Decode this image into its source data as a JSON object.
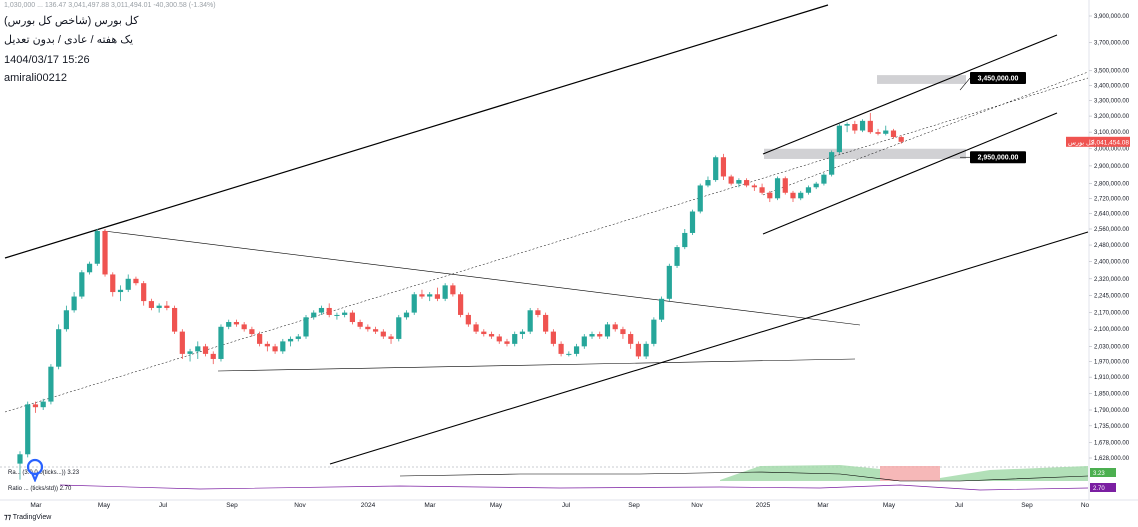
{
  "header": {
    "ohlc_line": "1,030,000 ... 136.47 3,041,497.88 3,011,494.01 -40,300.58 (-1.34%)",
    "title": "کل بورس (شاخص کل بورس)",
    "subtitle": "یک هفته / عادی / بدون تعدیل",
    "datetime": "1404/03/17 15:26",
    "author": "amirali00212"
  },
  "branding": {
    "logo_text": "TradingView",
    "icon": "tradingview-icon"
  },
  "colors": {
    "up": "#26a69a",
    "down": "#ef5350",
    "zone": "#c9c9cc",
    "tag_bg": "#000000",
    "last_bg": "#ef5350",
    "ind_green": "#9fd8a6",
    "ind_red": "#f4a6a6",
    "ind_purple": "#7b1fa2"
  },
  "chart_data": {
    "type": "candlestick",
    "title": "کل بورس (شاخص کل بورس)",
    "timeframe": "1W",
    "y_scale": "log",
    "ylim": [
      1580000,
      3900000
    ],
    "price_ticks": [
      {
        "v": 3900000,
        "label": "3,900,000.00"
      },
      {
        "v": 3700000,
        "label": "3,700,000.00"
      },
      {
        "v": 3500000,
        "label": "3,500,000.00"
      },
      {
        "v": 3400000,
        "label": "3,400,000.00"
      },
      {
        "v": 3300000,
        "label": "3,300,000.00"
      },
      {
        "v": 3200000,
        "label": "3,200,000.00"
      },
      {
        "v": 3100000,
        "label": "3,100,000.00"
      },
      {
        "v": 3000000,
        "label": "3,000,000.00"
      },
      {
        "v": 2900000,
        "label": "2,900,000.00"
      },
      {
        "v": 2800000,
        "label": "2,800,000.00"
      },
      {
        "v": 2720000,
        "label": "2,720,000.00"
      },
      {
        "v": 2640000,
        "label": "2,640,000.00"
      },
      {
        "v": 2560000,
        "label": "2,560,000.00"
      },
      {
        "v": 2480000,
        "label": "2,480,000.00"
      },
      {
        "v": 2400000,
        "label": "2,400,000.00"
      },
      {
        "v": 2320000,
        "label": "2,320,000.00"
      },
      {
        "v": 2245000,
        "label": "2,245,000.00"
      },
      {
        "v": 2170000,
        "label": "2,170,000.00"
      },
      {
        "v": 2100000,
        "label": "2,100,000.00"
      },
      {
        "v": 2030000,
        "label": "2,030,000.00"
      },
      {
        "v": 1970000,
        "label": "1,970,000.00"
      },
      {
        "v": 1910000,
        "label": "1,910,000.00"
      },
      {
        "v": 1850000,
        "label": "1,850,000.00"
      },
      {
        "v": 1790000,
        "label": "1,790,000.00"
      },
      {
        "v": 1735000,
        "label": "1,735,000.00"
      },
      {
        "v": 1678000,
        "label": "1,678,000.00"
      },
      {
        "v": 1628000,
        "label": "1,628,000.00"
      }
    ],
    "time_ticks": [
      "Mar",
      "May",
      "Jul",
      "Sep",
      "Nov",
      "2024",
      "Mar",
      "May",
      "Jul",
      "Sep",
      "Nov",
      "2025",
      "Mar",
      "May",
      "Jul",
      "Sep",
      "No"
    ],
    "annotations": [
      {
        "label": "3,450,000.00",
        "value": 3450000
      },
      {
        "label": "2,950,000.00",
        "value": 2950000
      }
    ],
    "last_price": {
      "value": 3041454,
      "label": "3,041,454.08",
      "prefix": "کل بورس"
    },
    "zones": [
      {
        "name": "resistance-zone",
        "top": 3470000,
        "bottom": 3410000
      },
      {
        "name": "support-zone",
        "top": 3000000,
        "bottom": 2940000
      }
    ],
    "candles": [
      [
        1610000,
        1650000,
        1560000,
        1640000
      ],
      [
        1640000,
        1820000,
        1630000,
        1810000
      ],
      [
        1810000,
        1820000,
        1780000,
        1800000
      ],
      [
        1800000,
        1830000,
        1790000,
        1820000
      ],
      [
        1820000,
        1960000,
        1810000,
        1950000
      ],
      [
        1950000,
        2120000,
        1940000,
        2100000
      ],
      [
        2100000,
        2200000,
        2090000,
        2180000
      ],
      [
        2180000,
        2260000,
        2170000,
        2240000
      ],
      [
        2240000,
        2360000,
        2230000,
        2350000
      ],
      [
        2350000,
        2400000,
        2340000,
        2390000
      ],
      [
        2390000,
        2560000,
        2380000,
        2550000
      ],
      [
        2550000,
        2560000,
        2330000,
        2340000
      ],
      [
        2340000,
        2350000,
        2240000,
        2260000
      ],
      [
        2260000,
        2290000,
        2220000,
        2270000
      ],
      [
        2270000,
        2340000,
        2260000,
        2320000
      ],
      [
        2320000,
        2330000,
        2290000,
        2300000
      ],
      [
        2300000,
        2310000,
        2200000,
        2220000
      ],
      [
        2220000,
        2230000,
        2180000,
        2190000
      ],
      [
        2190000,
        2210000,
        2170000,
        2200000
      ],
      [
        2200000,
        2220000,
        2180000,
        2190000
      ],
      [
        2190000,
        2200000,
        2080000,
        2090000
      ],
      [
        2090000,
        2100000,
        1980000,
        2000000
      ],
      [
        2000000,
        2020000,
        1970000,
        2010000
      ],
      [
        2010000,
        2050000,
        1980000,
        2030000
      ],
      [
        2030000,
        2040000,
        1990000,
        2000000
      ],
      [
        2000000,
        2010000,
        1960000,
        1980000
      ],
      [
        1980000,
        2120000,
        1970000,
        2110000
      ],
      [
        2110000,
        2140000,
        2100000,
        2130000
      ],
      [
        2130000,
        2140000,
        2110000,
        2120000
      ],
      [
        2120000,
        2130000,
        2090000,
        2100000
      ],
      [
        2100000,
        2110000,
        2070000,
        2080000
      ],
      [
        2080000,
        2090000,
        2030000,
        2040000
      ],
      [
        2040000,
        2050000,
        2010000,
        2030000
      ],
      [
        2030000,
        2040000,
        2000000,
        2010000
      ],
      [
        2010000,
        2060000,
        2000000,
        2050000
      ],
      [
        2050000,
        2070000,
        2030000,
        2060000
      ],
      [
        2060000,
        2080000,
        2050000,
        2070000
      ],
      [
        2070000,
        2160000,
        2060000,
        2150000
      ],
      [
        2150000,
        2180000,
        2140000,
        2170000
      ],
      [
        2170000,
        2200000,
        2160000,
        2190000
      ],
      [
        2190000,
        2210000,
        2150000,
        2160000
      ],
      [
        2160000,
        2170000,
        2140000,
        2160000
      ],
      [
        2160000,
        2180000,
        2150000,
        2170000
      ],
      [
        2170000,
        2180000,
        2120000,
        2130000
      ],
      [
        2130000,
        2140000,
        2100000,
        2110000
      ],
      [
        2110000,
        2120000,
        2090000,
        2100000
      ],
      [
        2100000,
        2110000,
        2080000,
        2090000
      ],
      [
        2090000,
        2100000,
        2060000,
        2070000
      ],
      [
        2070000,
        2080000,
        2040000,
        2060000
      ],
      [
        2060000,
        2160000,
        2050000,
        2150000
      ],
      [
        2150000,
        2180000,
        2140000,
        2170000
      ],
      [
        2170000,
        2260000,
        2160000,
        2250000
      ],
      [
        2250000,
        2270000,
        2230000,
        2240000
      ],
      [
        2240000,
        2260000,
        2220000,
        2250000
      ],
      [
        2250000,
        2280000,
        2220000,
        2230000
      ],
      [
        2230000,
        2300000,
        2220000,
        2290000
      ],
      [
        2290000,
        2300000,
        2240000,
        2250000
      ],
      [
        2250000,
        2260000,
        2150000,
        2160000
      ],
      [
        2160000,
        2170000,
        2110000,
        2120000
      ],
      [
        2120000,
        2130000,
        2080000,
        2090000
      ],
      [
        2090000,
        2100000,
        2070000,
        2080000
      ],
      [
        2080000,
        2090000,
        2060000,
        2070000
      ],
      [
        2070000,
        2080000,
        2040000,
        2050000
      ],
      [
        2050000,
        2060000,
        2030000,
        2040000
      ],
      [
        2040000,
        2090000,
        2030000,
        2080000
      ],
      [
        2080000,
        2100000,
        2060000,
        2090000
      ],
      [
        2090000,
        2190000,
        2080000,
        2180000
      ],
      [
        2180000,
        2190000,
        2150000,
        2160000
      ],
      [
        2160000,
        2170000,
        2080000,
        2090000
      ],
      [
        2090000,
        2100000,
        2030000,
        2040000
      ],
      [
        2040000,
        2050000,
        1990000,
        2000000
      ],
      [
        2000000,
        2010000,
        1990000,
        2000000
      ],
      [
        2000000,
        2040000,
        1990000,
        2030000
      ],
      [
        2030000,
        2080000,
        2020000,
        2070000
      ],
      [
        2070000,
        2090000,
        2060000,
        2080000
      ],
      [
        2080000,
        2090000,
        2060000,
        2070000
      ],
      [
        2070000,
        2130000,
        2060000,
        2120000
      ],
      [
        2120000,
        2130000,
        2090000,
        2100000
      ],
      [
        2100000,
        2110000,
        2060000,
        2080000
      ],
      [
        2080000,
        2090000,
        2020000,
        2040000
      ],
      [
        2040000,
        2050000,
        1980000,
        1990000
      ],
      [
        1990000,
        2050000,
        1980000,
        2040000
      ],
      [
        2040000,
        2150000,
        2030000,
        2140000
      ],
      [
        2140000,
        2240000,
        2130000,
        2230000
      ],
      [
        2230000,
        2390000,
        2220000,
        2380000
      ],
      [
        2380000,
        2480000,
        2370000,
        2470000
      ],
      [
        2470000,
        2560000,
        2460000,
        2540000
      ],
      [
        2540000,
        2660000,
        2530000,
        2650000
      ],
      [
        2650000,
        2800000,
        2640000,
        2790000
      ],
      [
        2790000,
        2840000,
        2780000,
        2820000
      ],
      [
        2820000,
        2960000,
        2810000,
        2950000
      ],
      [
        2950000,
        2970000,
        2820000,
        2840000
      ],
      [
        2840000,
        2850000,
        2790000,
        2800000
      ],
      [
        2800000,
        2830000,
        2780000,
        2820000
      ],
      [
        2820000,
        2830000,
        2780000,
        2790000
      ],
      [
        2790000,
        2800000,
        2760000,
        2780000
      ],
      [
        2780000,
        2800000,
        2740000,
        2750000
      ],
      [
        2750000,
        2760000,
        2700000,
        2720000
      ],
      [
        2720000,
        2840000,
        2710000,
        2830000
      ],
      [
        2830000,
        2840000,
        2740000,
        2750000
      ],
      [
        2750000,
        2760000,
        2700000,
        2720000
      ],
      [
        2720000,
        2760000,
        2710000,
        2750000
      ],
      [
        2750000,
        2790000,
        2740000,
        2780000
      ],
      [
        2780000,
        2810000,
        2770000,
        2800000
      ],
      [
        2800000,
        2860000,
        2790000,
        2850000
      ],
      [
        2850000,
        2990000,
        2840000,
        2980000
      ],
      [
        2980000,
        3150000,
        2970000,
        3140000
      ],
      [
        3140000,
        3160000,
        3100000,
        3150000
      ],
      [
        3150000,
        3170000,
        3090000,
        3110000
      ],
      [
        3110000,
        3180000,
        3100000,
        3170000
      ],
      [
        3170000,
        3220000,
        3090000,
        3100000
      ],
      [
        3100000,
        3120000,
        3080000,
        3090000
      ],
      [
        3090000,
        3140000,
        3080000,
        3110000
      ],
      [
        3110000,
        3120000,
        3060000,
        3070000
      ],
      [
        3070000,
        3080000,
        3030000,
        3041454
      ]
    ],
    "indicators": [
      {
        "name": "Ra... (3.0,0.0(ticks...))",
        "value_label": "3.23"
      },
      {
        "name": "Ratio ... (ticks/std))",
        "value_label": "2.70"
      }
    ]
  }
}
